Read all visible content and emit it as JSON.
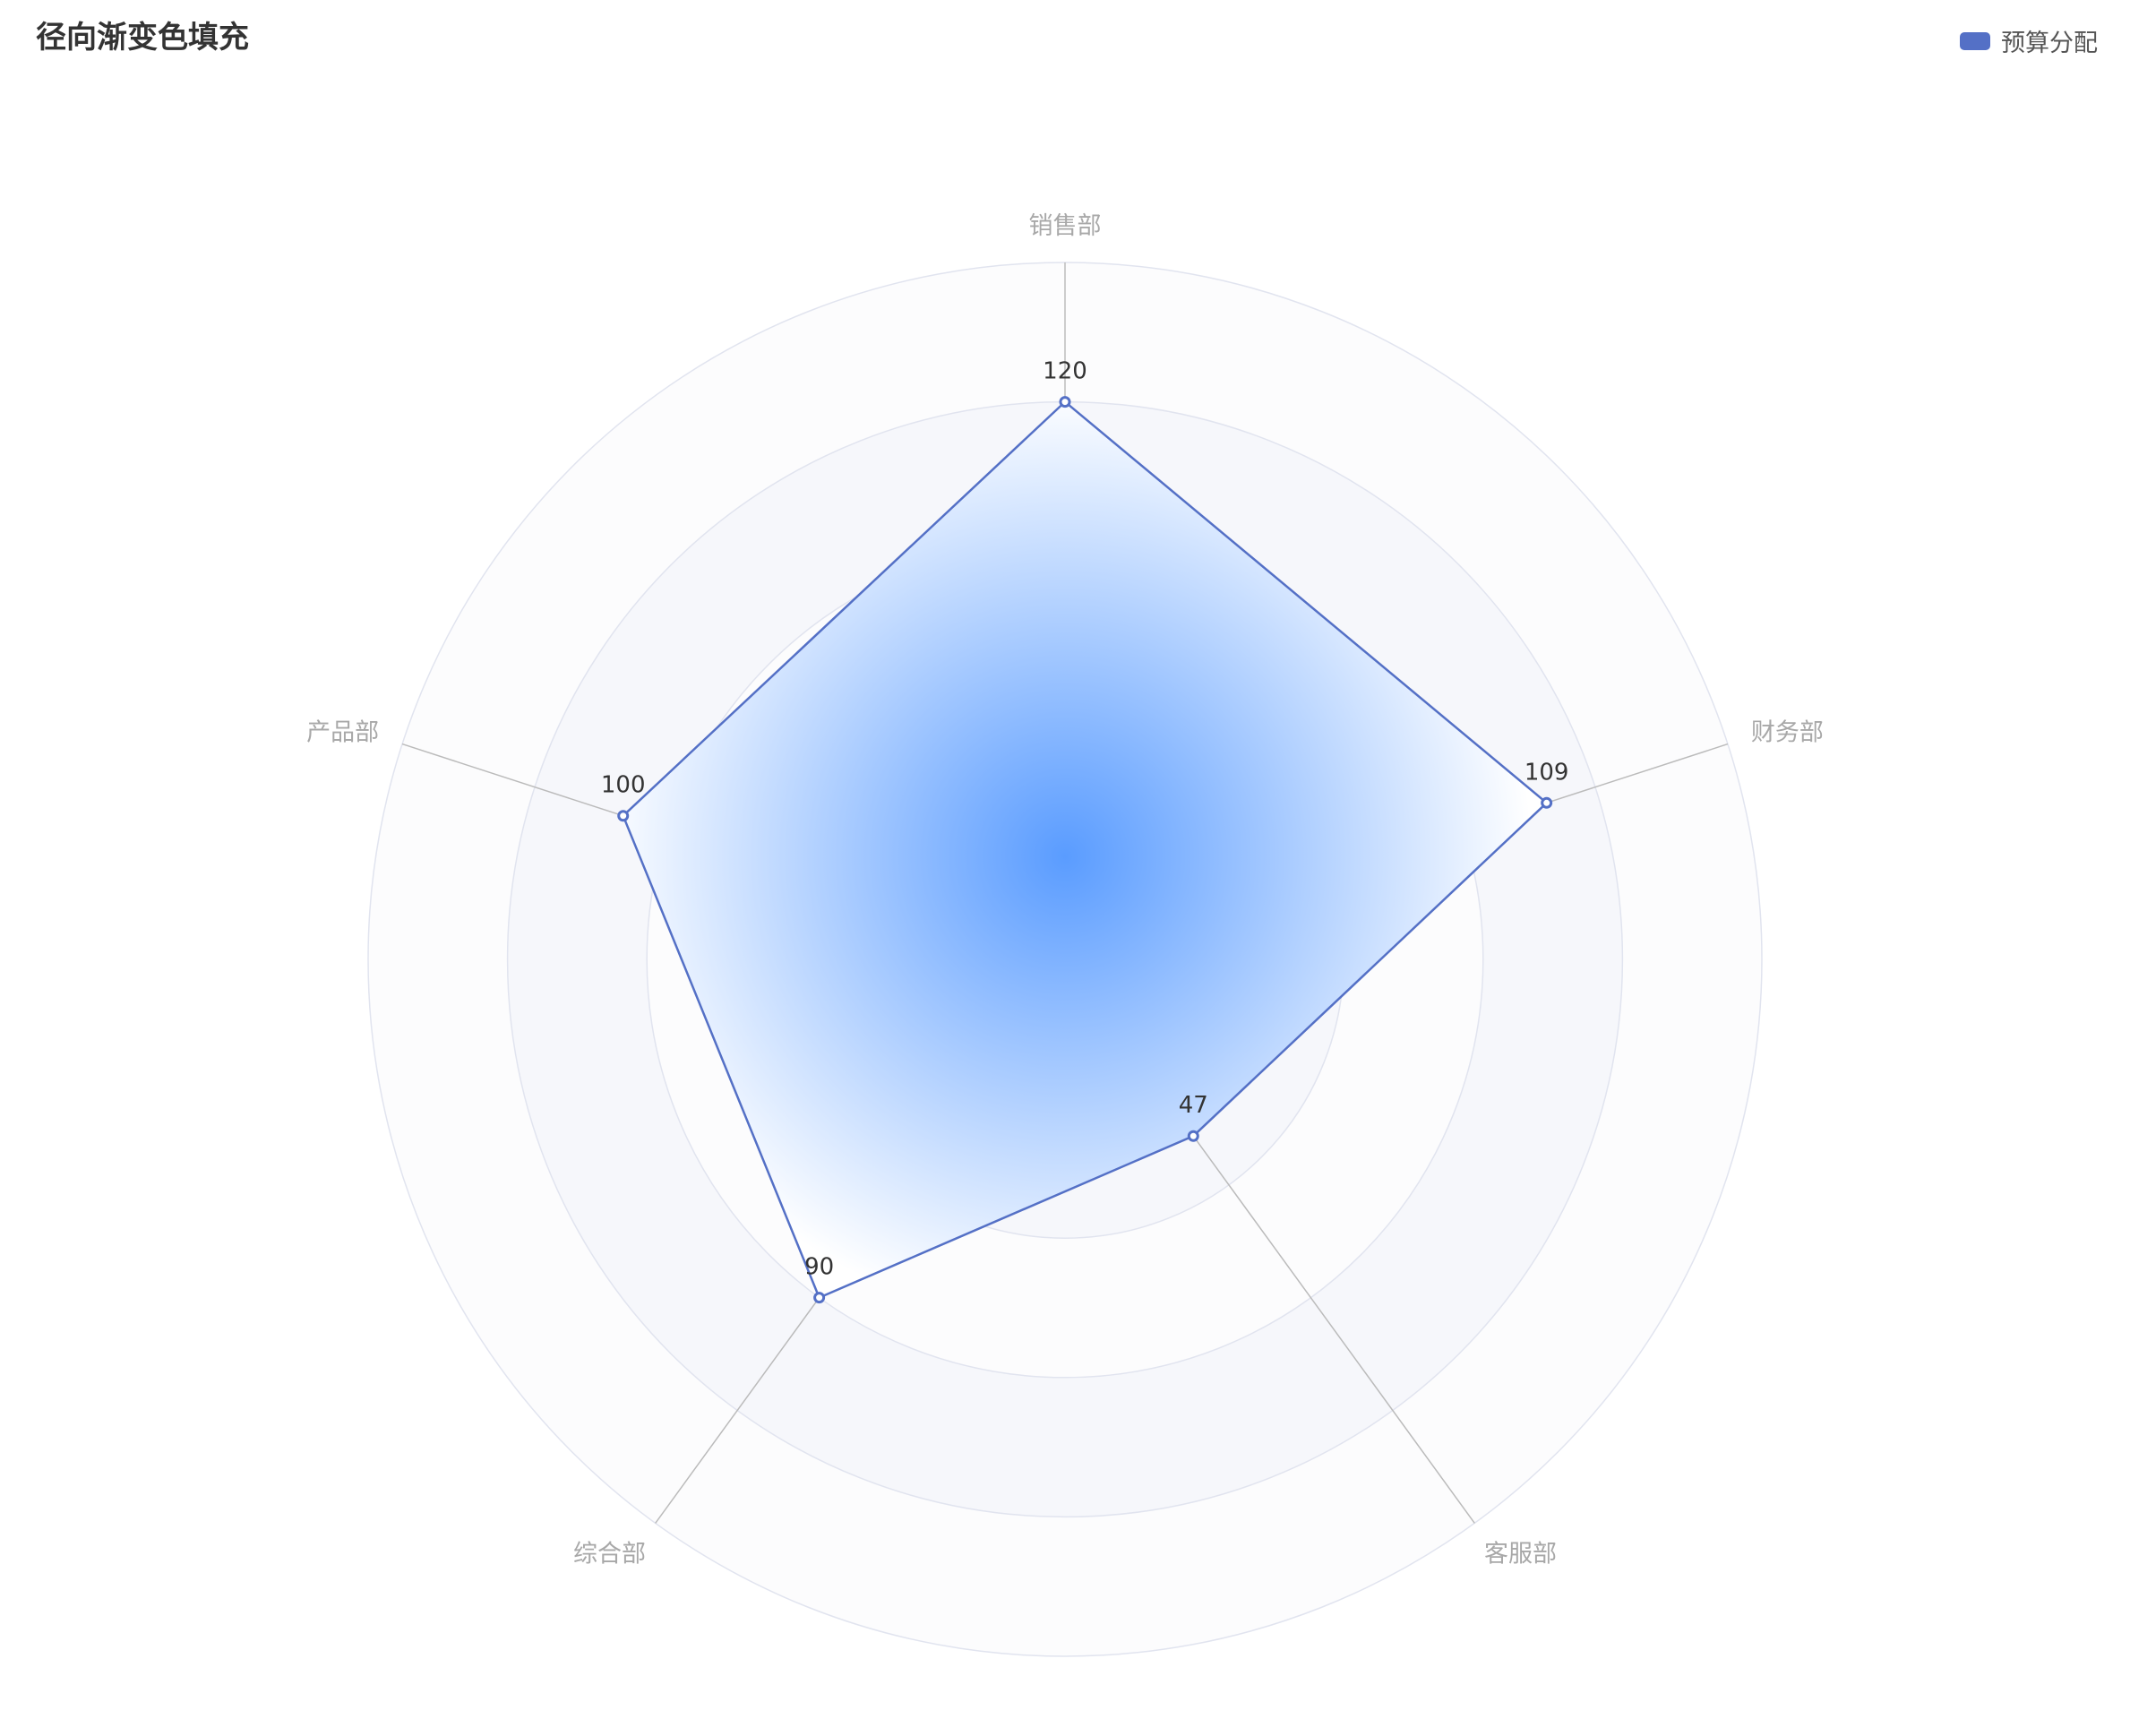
{
  "chart_data": {
    "type": "radar",
    "title": "径向渐变色填充",
    "legend": {
      "position": "top-right",
      "items": [
        {
          "name": "预算分配",
          "color": "#5470c6"
        }
      ]
    },
    "indicators": [
      {
        "name": "销售部",
        "value": 120
      },
      {
        "name": "财务部",
        "value": 109
      },
      {
        "name": "客服部",
        "value": 47
      },
      {
        "name": "综合部",
        "value": 90
      },
      {
        "name": "产品部",
        "value": 100
      }
    ],
    "series": [
      {
        "name": "预算分配",
        "values": [
          120,
          109,
          47,
          90,
          100
        ]
      }
    ],
    "radial_max": 150,
    "rings": 5,
    "colors": {
      "line": "#5470c6",
      "fill_center": "#5a9cff",
      "fill_edge": "#ffffff",
      "ring_band_light": "#fcfcfd",
      "ring_band_dark": "#f6f7fb",
      "ring_line": "#e1e4ef",
      "axis_line": "#bbbbbb"
    }
  }
}
